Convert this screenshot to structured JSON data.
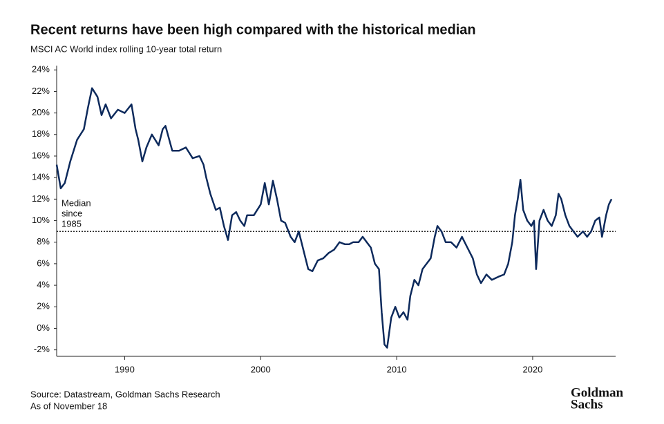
{
  "chart_data": {
    "type": "line",
    "title": "Recent returns have been high compared with the historical median",
    "subtitle": "MSCI AC World index rolling 10-year total return",
    "source": "Source: Datastream, Goldman Sachs Research",
    "date_note": "As of November 18",
    "logo": [
      "Goldman",
      "Sachs"
    ],
    "annotation": {
      "text": [
        "Median",
        "since",
        "1985"
      ],
      "value": 9
    },
    "xlim": [
      1985,
      2026.1
    ],
    "xticks": [
      1990,
      2000,
      2010,
      2020
    ],
    "ylim": [
      -2.6,
      24.4
    ],
    "yticks": [
      {
        "value": -2,
        "label": "-2%"
      },
      {
        "value": 0,
        "label": "0%"
      },
      {
        "value": 2,
        "label": "2%"
      },
      {
        "value": 4,
        "label": "4%"
      },
      {
        "value": 6,
        "label": "6%"
      },
      {
        "value": 8,
        "label": "8%"
      },
      {
        "value": 10,
        "label": "10%"
      },
      {
        "value": 12,
        "label": "12%"
      },
      {
        "value": 14,
        "label": "14%"
      },
      {
        "value": 16,
        "label": "16%"
      },
      {
        "value": 18,
        "label": "18%"
      },
      {
        "value": 20,
        "label": "20%"
      },
      {
        "value": 22,
        "label": "22%"
      },
      {
        "value": 24,
        "label": "24%"
      }
    ],
    "series": [
      {
        "color": "#0d2a5c",
        "x": [
          1985.0,
          1985.3,
          1985.6,
          1986.0,
          1986.5,
          1987.0,
          1987.3,
          1987.6,
          1988.0,
          1988.3,
          1988.6,
          1989.0,
          1989.5,
          1990.0,
          1990.5,
          1990.8,
          1991.0,
          1991.3,
          1991.6,
          1992.0,
          1992.5,
          1992.8,
          1993.0,
          1993.5,
          1994.0,
          1994.5,
          1995.0,
          1995.5,
          1995.8,
          1996.0,
          1996.3,
          1996.7,
          1997.0,
          1997.3,
          1997.6,
          1997.9,
          1998.2,
          1998.5,
          1998.8,
          1999.0,
          1999.5,
          2000.0,
          2000.3,
          2000.6,
          2000.9,
          2001.2,
          2001.5,
          2001.8,
          2002.2,
          2002.5,
          2002.8,
          2003.2,
          2003.5,
          2003.8,
          2004.2,
          2004.6,
          2005.0,
          2005.4,
          2005.8,
          2006.2,
          2006.5,
          2006.8,
          2007.2,
          2007.5,
          2007.8,
          2008.1,
          2008.4,
          2008.7,
          2008.9,
          2009.1,
          2009.3,
          2009.6,
          2009.9,
          2010.2,
          2010.5,
          2010.8,
          2011.0,
          2011.3,
          2011.6,
          2011.9,
          2012.2,
          2012.5,
          2012.8,
          2013.0,
          2013.3,
          2013.6,
          2014.0,
          2014.4,
          2014.8,
          2015.2,
          2015.6,
          2015.9,
          2016.2,
          2016.6,
          2017.0,
          2017.5,
          2017.9,
          2018.2,
          2018.5,
          2018.7,
          2018.9,
          2019.1,
          2019.3,
          2019.6,
          2019.9,
          2020.1,
          2020.25,
          2020.5,
          2020.8,
          2021.1,
          2021.4,
          2021.7,
          2021.9,
          2022.1,
          2022.4,
          2022.7,
          2023.0,
          2023.3,
          2023.7,
          2024.0,
          2024.3,
          2024.6,
          2024.9,
          2025.1,
          2025.4,
          2025.6,
          2025.8
        ],
        "values": [
          15.2,
          13.0,
          13.5,
          15.5,
          17.5,
          18.5,
          20.5,
          22.3,
          21.5,
          19.8,
          20.8,
          19.5,
          20.3,
          20.0,
          20.8,
          18.5,
          17.5,
          15.5,
          16.8,
          18.0,
          17.0,
          18.5,
          18.8,
          16.5,
          16.5,
          16.8,
          15.8,
          16.0,
          15.2,
          14.0,
          12.5,
          11.0,
          11.2,
          9.5,
          8.2,
          10.5,
          10.8,
          10.0,
          9.5,
          10.5,
          10.5,
          11.5,
          13.5,
          11.5,
          13.7,
          12.0,
          10.0,
          9.8,
          8.5,
          8.0,
          9.0,
          7.0,
          5.5,
          5.3,
          6.3,
          6.5,
          7.0,
          7.3,
          8.0,
          7.8,
          7.8,
          8.0,
          8.0,
          8.5,
          8.0,
          7.5,
          6.0,
          5.5,
          1.5,
          -1.5,
          -1.8,
          1.0,
          2.0,
          1.0,
          1.5,
          0.8,
          3.0,
          4.5,
          4.0,
          5.5,
          6.0,
          6.5,
          8.5,
          9.5,
          9.0,
          8.0,
          8.0,
          7.5,
          8.5,
          7.5,
          6.5,
          5.0,
          4.2,
          5.0,
          4.5,
          4.8,
          5.0,
          6.0,
          8.0,
          10.5,
          12.0,
          13.8,
          11.0,
          10.0,
          9.5,
          10.0,
          5.5,
          10.0,
          11.0,
          10.0,
          9.5,
          10.5,
          12.5,
          12.0,
          10.5,
          9.5,
          9.0,
          8.5,
          9.0,
          8.5,
          9.0,
          10.0,
          10.3,
          8.5,
          10.5,
          11.5,
          12.0
        ]
      }
    ]
  }
}
